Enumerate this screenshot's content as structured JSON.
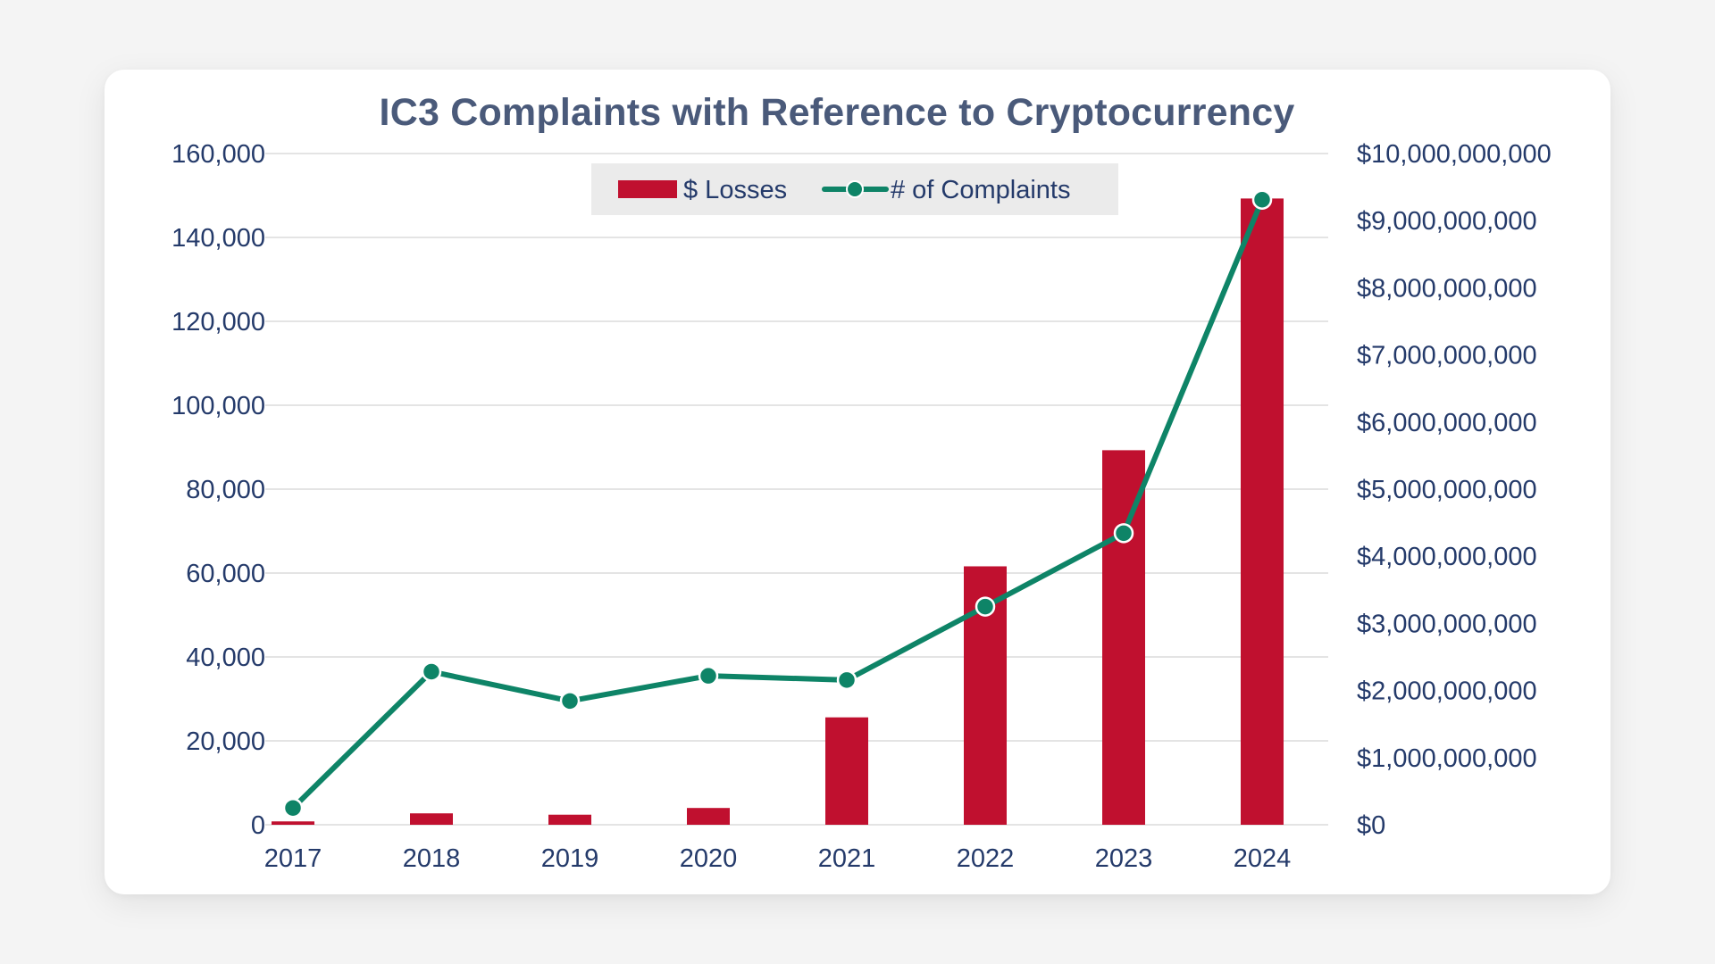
{
  "chart_data": {
    "type": "bar",
    "title": "IC3 Complaints with Reference to Cryptocurrency",
    "categories": [
      "2017",
      "2018",
      "2019",
      "2020",
      "2021",
      "2022",
      "2023",
      "2024"
    ],
    "series": [
      {
        "name": "$ Losses",
        "type": "bar",
        "axis": "right",
        "color": "#c0102f",
        "values": [
          50000000,
          170000000,
          150000000,
          250000000,
          1600000000,
          3850000000,
          5580000000,
          9330000000
        ]
      },
      {
        "name": "# of Complaints",
        "type": "line",
        "axis": "left",
        "color": "#0e8467",
        "values": [
          4000,
          36500,
          29500,
          35500,
          34500,
          52000,
          69500,
          149000
        ]
      }
    ],
    "y_left": {
      "ylim": [
        0,
        160000
      ],
      "tick_labels": [
        "0",
        "20,000",
        "40,000",
        "60,000",
        "80,000",
        "100,000",
        "120,000",
        "140,000",
        "160,000"
      ]
    },
    "y_right": {
      "ylim": [
        0,
        10000000000
      ],
      "tick_labels": [
        "$0",
        "$1,000,000,000",
        "$2,000,000,000",
        "$3,000,000,000",
        "$4,000,000,000",
        "$5,000,000,000",
        "$6,000,000,000",
        "$7,000,000,000",
        "$8,000,000,000",
        "$9,000,000,000",
        "$10,000,000,000"
      ]
    },
    "grid": true,
    "legend": "top-center"
  }
}
